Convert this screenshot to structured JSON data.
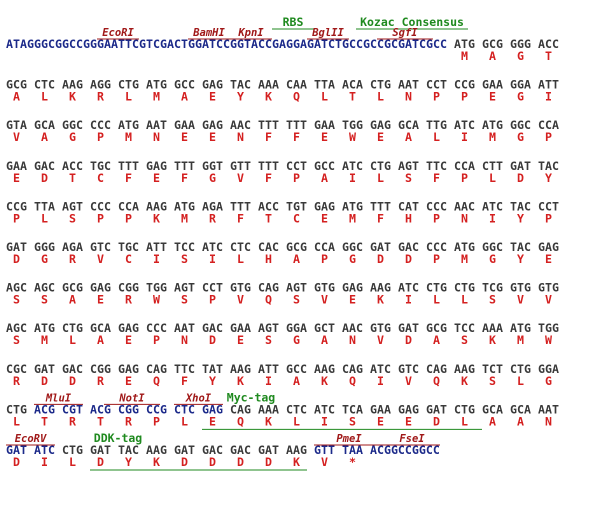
{
  "rows": [
    {
      "lead": "ATAGGGCGGCCGGGAATTCGTCGACTGGATCCGGTACCGAGGAGATCTGCCGCCGCGATCGCC",
      "codons": [
        "ATG",
        "GCG",
        "GGG",
        "ACC"
      ],
      "amino_acids": [
        "M",
        "A",
        "G",
        "T"
      ]
    },
    {
      "codons": [
        "GCG",
        "CTC",
        "AAG",
        "AGG",
        "CTG",
        "ATG",
        "GCC",
        "GAG",
        "TAC",
        "AAA",
        "CAA",
        "TTA",
        "ACA",
        "CTG",
        "AAT",
        "CCT",
        "CCG",
        "GAA",
        "GGA",
        "ATT"
      ],
      "amino_acids": [
        "A",
        "L",
        "K",
        "R",
        "L",
        "M",
        "A",
        "E",
        "Y",
        "K",
        "Q",
        "L",
        "T",
        "L",
        "N",
        "P",
        "P",
        "E",
        "G",
        "I"
      ]
    },
    {
      "codons": [
        "GTA",
        "GCA",
        "GGC",
        "CCC",
        "ATG",
        "AAT",
        "GAA",
        "GAG",
        "AAC",
        "TTT",
        "TTT",
        "GAA",
        "TGG",
        "GAG",
        "GCA",
        "TTG",
        "ATC",
        "ATG",
        "GGC",
        "CCA"
      ],
      "amino_acids": [
        "V",
        "A",
        "G",
        "P",
        "M",
        "N",
        "E",
        "E",
        "N",
        "F",
        "F",
        "E",
        "W",
        "E",
        "A",
        "L",
        "I",
        "M",
        "G",
        "P"
      ]
    },
    {
      "codons": [
        "GAA",
        "GAC",
        "ACC",
        "TGC",
        "TTT",
        "GAG",
        "TTT",
        "GGT",
        "GTT",
        "TTT",
        "CCT",
        "GCC",
        "ATC",
        "CTG",
        "AGT",
        "TTC",
        "CCA",
        "CTT",
        "GAT",
        "TAC"
      ],
      "amino_acids": [
        "E",
        "D",
        "T",
        "C",
        "F",
        "E",
        "F",
        "G",
        "V",
        "F",
        "P",
        "A",
        "I",
        "L",
        "S",
        "F",
        "P",
        "L",
        "D",
        "Y"
      ]
    },
    {
      "codons": [
        "CCG",
        "TTA",
        "AGT",
        "CCC",
        "CCA",
        "AAG",
        "ATG",
        "AGA",
        "TTT",
        "ACC",
        "TGT",
        "GAG",
        "ATG",
        "TTT",
        "CAT",
        "CCC",
        "AAC",
        "ATC",
        "TAC",
        "CCT"
      ],
      "amino_acids": [
        "P",
        "L",
        "S",
        "P",
        "P",
        "K",
        "M",
        "R",
        "F",
        "T",
        "C",
        "E",
        "M",
        "F",
        "H",
        "P",
        "N",
        "I",
        "Y",
        "P"
      ]
    },
    {
      "codons": [
        "GAT",
        "GGG",
        "AGA",
        "GTC",
        "TGC",
        "ATT",
        "TCC",
        "ATC",
        "CTC",
        "CAC",
        "GCG",
        "CCA",
        "GGC",
        "GAT",
        "GAC",
        "CCC",
        "ATG",
        "GGC",
        "TAC",
        "GAG"
      ],
      "amino_acids": [
        "D",
        "G",
        "R",
        "V",
        "C",
        "I",
        "S",
        "I",
        "L",
        "H",
        "A",
        "P",
        "G",
        "D",
        "D",
        "P",
        "M",
        "G",
        "Y",
        "E"
      ]
    },
    {
      "codons": [
        "AGC",
        "AGC",
        "GCG",
        "GAG",
        "CGG",
        "TGG",
        "AGT",
        "CCT",
        "GTG",
        "CAG",
        "AGT",
        "GTG",
        "GAG",
        "AAG",
        "ATC",
        "CTG",
        "CTG",
        "TCG",
        "GTG",
        "GTG"
      ],
      "amino_acids": [
        "S",
        "S",
        "A",
        "E",
        "R",
        "W",
        "S",
        "P",
        "V",
        "Q",
        "S",
        "V",
        "E",
        "K",
        "I",
        "L",
        "L",
        "S",
        "V",
        "V"
      ]
    },
    {
      "codons": [
        "AGC",
        "ATG",
        "CTG",
        "GCA",
        "GAG",
        "CCC",
        "AAT",
        "GAC",
        "GAA",
        "AGT",
        "GGA",
        "GCT",
        "AAC",
        "GTG",
        "GAT",
        "GCG",
        "TCC",
        "AAA",
        "ATG",
        "TGG"
      ],
      "amino_acids": [
        "S",
        "M",
        "L",
        "A",
        "E",
        "P",
        "N",
        "D",
        "E",
        "S",
        "G",
        "A",
        "N",
        "V",
        "D",
        "A",
        "S",
        "K",
        "M",
        "W"
      ]
    },
    {
      "codons": [
        "CGC",
        "GAT",
        "GAC",
        "CGG",
        "GAG",
        "CAG",
        "TTC",
        "TAT",
        "AAG",
        "ATT",
        "GCC",
        "AAG",
        "CAG",
        "ATC",
        "GTC",
        "CAG",
        "AAG",
        "TCT",
        "CTG",
        "GGA"
      ],
      "amino_acids": [
        "R",
        "D",
        "D",
        "R",
        "E",
        "Q",
        "F",
        "Y",
        "K",
        "I",
        "A",
        "K",
        "Q",
        "I",
        "V",
        "Q",
        "K",
        "S",
        "L",
        "G"
      ]
    },
    {
      "codons": [
        "CTG",
        "ACG",
        "CGT",
        "ACG",
        "CGG",
        "CCG",
        "CTC",
        "GAG",
        "CAG",
        "AAA",
        "CTC",
        "ATC",
        "TCA",
        "GAA",
        "GAG",
        "GAT",
        "CTG",
        "GCA",
        "GCA",
        "AAT"
      ],
      "amino_acids": [
        "L",
        "T",
        "R",
        "T",
        "R",
        "P",
        "L",
        "E",
        "Q",
        "K",
        "L",
        "I",
        "S",
        "E",
        "E",
        "D",
        "L",
        "A",
        "A",
        "N"
      ]
    },
    {
      "codons": [
        "GAT",
        "ATC",
        "CTG",
        "GAT",
        "TAC",
        "AAG",
        "GAT",
        "GAC",
        "GAC",
        "GAT",
        "AAG",
        "GTT",
        "TAA"
      ],
      "amino_acids": [
        "D",
        "I",
        "L",
        "D",
        "Y",
        "K",
        "D",
        "D",
        "D",
        "D",
        "K",
        "V",
        "*"
      ],
      "tail": "ACGGCCGGCC"
    }
  ],
  "features": [
    {
      "label": "RBS",
      "kind": "tag"
    },
    {
      "label": "Kozac Consensus",
      "kind": "tag"
    },
    {
      "label": "EcoRI",
      "kind": "enzyme"
    },
    {
      "label": "BamHI",
      "kind": "enzyme"
    },
    {
      "label": "KpnI",
      "kind": "enzyme"
    },
    {
      "label": "BglII",
      "kind": "enzyme"
    },
    {
      "label": "SgfI",
      "kind": "enzyme"
    },
    {
      "label": "MluI",
      "kind": "enzyme"
    },
    {
      "label": "NotI",
      "kind": "enzyme"
    },
    {
      "label": "XhoI",
      "kind": "enzyme"
    },
    {
      "label": "Myc-tag",
      "kind": "tag"
    },
    {
      "label": "EcoRV",
      "kind": "enzyme"
    },
    {
      "label": "DDK-tag",
      "kind": "tag"
    },
    {
      "label": "PmeI",
      "kind": "enzyme"
    },
    {
      "label": "FseI",
      "kind": "enzyme"
    }
  ]
}
